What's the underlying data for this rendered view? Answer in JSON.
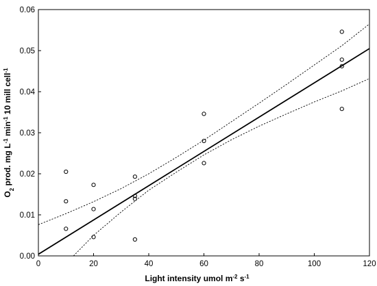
{
  "chart_data": {
    "type": "scatter",
    "title": "",
    "xlabel": "Light intensity  umol m-2 s-1",
    "ylabel": "O2 prod. mg L-1 min-1 10 mill cell-1",
    "xlim": [
      0,
      120
    ],
    "ylim": [
      0,
      0.06
    ],
    "x_ticks": [
      0,
      20,
      40,
      60,
      80,
      100,
      120
    ],
    "y_ticks": [
      0.0,
      0.01,
      0.02,
      0.03,
      0.04,
      0.05,
      0.06
    ],
    "x_tick_labels": [
      "0",
      "20",
      "40",
      "60",
      "80",
      "100",
      "120"
    ],
    "y_tick_labels": [
      "0.00",
      "0.01",
      "0.02",
      "0.03",
      "0.04",
      "0.05",
      "0.06"
    ],
    "grid": false,
    "series": [
      {
        "kind": "points",
        "marker": "open-circle",
        "color": "#000000",
        "x": [
          10,
          10,
          10,
          20,
          20,
          20,
          35,
          35,
          35,
          35,
          60,
          60,
          60,
          110,
          110,
          110,
          110
        ],
        "y": [
          0.0205,
          0.0133,
          0.0066,
          0.0173,
          0.0114,
          0.0046,
          0.0193,
          0.0146,
          0.0139,
          0.004,
          0.0346,
          0.028,
          0.0226,
          0.0546,
          0.0478,
          0.0462,
          0.0358
        ]
      },
      {
        "kind": "fit",
        "style": "solid",
        "color": "#000000",
        "x": [
          0,
          120
        ],
        "y": [
          0.0004,
          0.0505
        ]
      },
      {
        "kind": "upper-band",
        "style": "dotted",
        "color": "#000000",
        "x": [
          0,
          10,
          20,
          30,
          40,
          50,
          60,
          70,
          80,
          90,
          100,
          110,
          120
        ],
        "y": [
          0.0076,
          0.0103,
          0.0132,
          0.0164,
          0.02,
          0.024,
          0.0282,
          0.0327,
          0.0372,
          0.0418,
          0.0465,
          0.0512,
          0.0565
        ]
      },
      {
        "kind": "lower-band",
        "style": "dotted",
        "color": "#000000",
        "x": [
          12,
          20,
          30,
          40,
          50,
          60,
          70,
          80,
          90,
          100,
          110,
          120
        ],
        "y": [
          -0.0005,
          0.005,
          0.0107,
          0.016,
          0.0204,
          0.0246,
          0.0283,
          0.0316,
          0.0346,
          0.0375,
          0.0402,
          0.0432
        ]
      }
    ]
  }
}
